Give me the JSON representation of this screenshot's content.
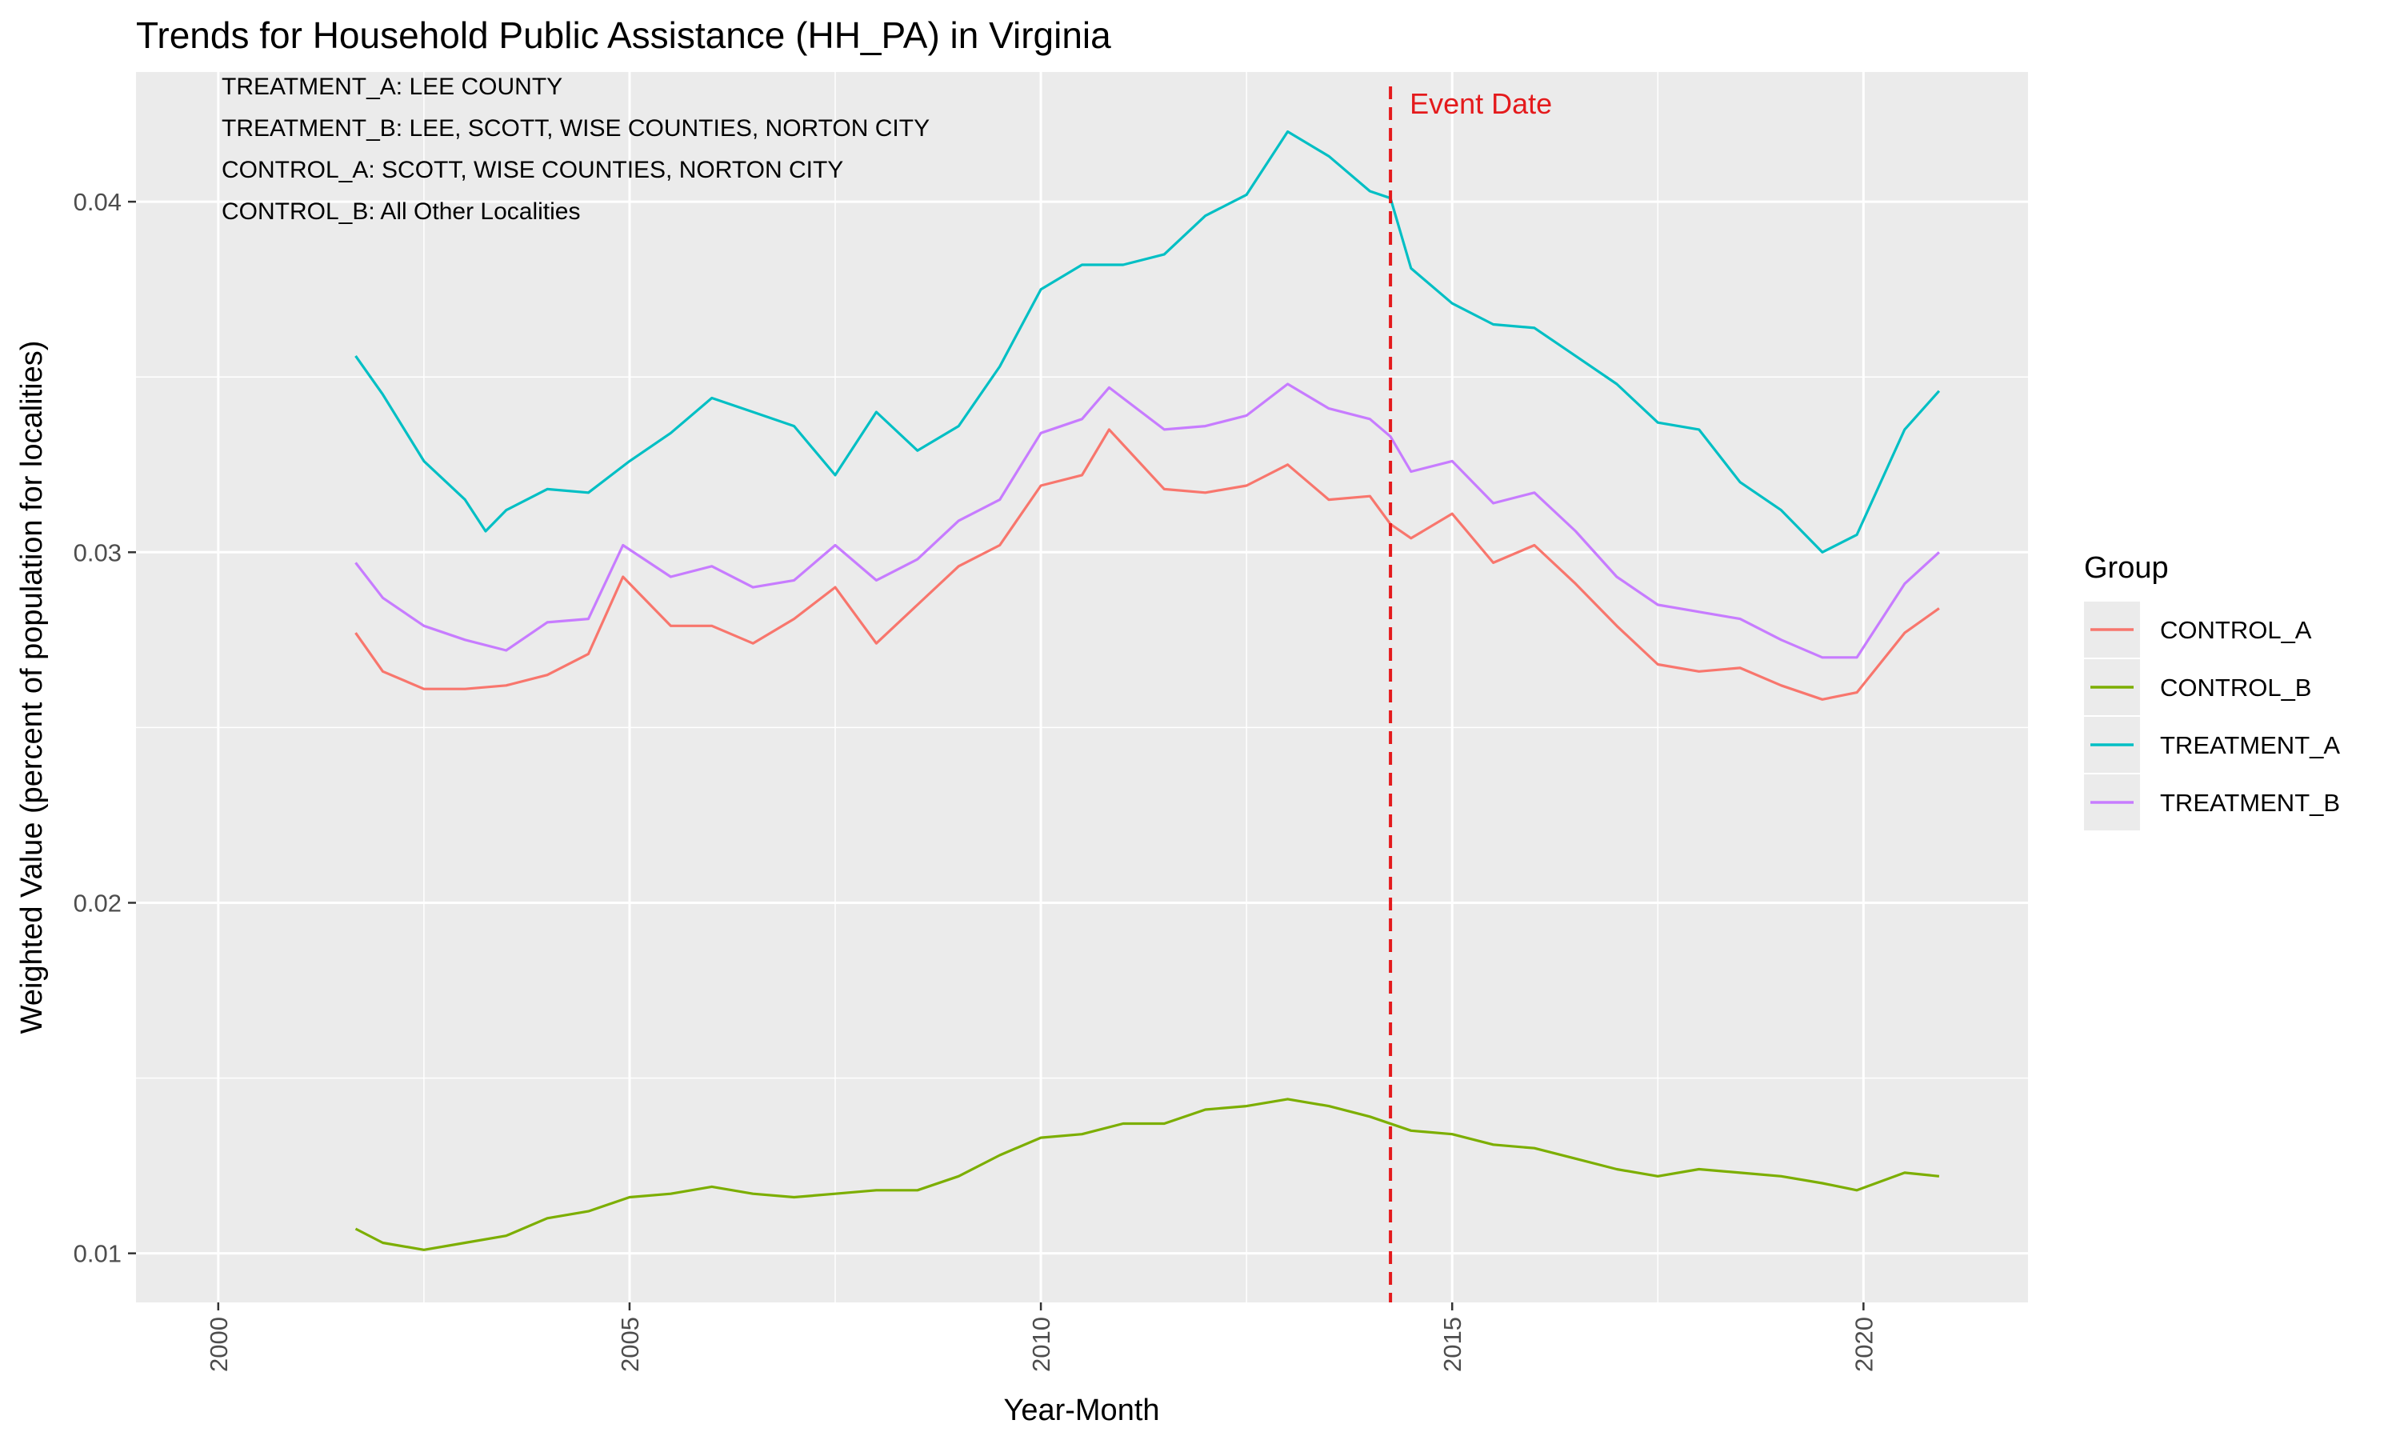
{
  "chart_data": {
    "type": "line",
    "title": "Trends for Household Public Assistance (HH_PA) in Virginia",
    "xlabel": "Year-Month",
    "ylabel": "Weighted Value (percent of population for localities)",
    "xlim": [
      1999.0,
      2022.0
    ],
    "ylim": [
      0.0086,
      0.0437
    ],
    "x_ticks": [
      2000,
      2005,
      2010,
      2015,
      2020
    ],
    "y_ticks": [
      0.01,
      0.02,
      0.03,
      0.04
    ],
    "x_tick_labels": [
      "2000",
      "2005",
      "2010",
      "2015",
      "2020"
    ],
    "y_tick_labels": [
      "0.01",
      "0.02",
      "0.03",
      "0.04"
    ],
    "grid": true,
    "legend": {
      "title": "Group",
      "position": "right"
    },
    "annotations": [
      "TREATMENT_A: LEE COUNTY",
      "TREATMENT_B: LEE, SCOTT, WISE COUNTIES, NORTON CITY",
      "CONTROL_A: SCOTT, WISE COUNTIES, NORTON CITY",
      "CONTROL_B: All Other Localities"
    ],
    "event_line": {
      "x": 2014.25,
      "label": "Event Date",
      "color": "#e41a1c"
    },
    "series": [
      {
        "name": "CONTROL_A",
        "color": "#F8766D",
        "points": [
          [
            2001.67,
            0.0277
          ],
          [
            2002.0,
            0.0266
          ],
          [
            2002.5,
            0.0261
          ],
          [
            2003.0,
            0.0261
          ],
          [
            2003.5,
            0.0262
          ],
          [
            2004.0,
            0.0265
          ],
          [
            2004.5,
            0.0271
          ],
          [
            2004.92,
            0.0293
          ],
          [
            2005.5,
            0.0279
          ],
          [
            2006.0,
            0.0279
          ],
          [
            2006.5,
            0.0274
          ],
          [
            2007.0,
            0.0281
          ],
          [
            2007.5,
            0.029
          ],
          [
            2008.0,
            0.0274
          ],
          [
            2008.5,
            0.0285
          ],
          [
            2009.0,
            0.0296
          ],
          [
            2009.5,
            0.0302
          ],
          [
            2010.0,
            0.0319
          ],
          [
            2010.5,
            0.0322
          ],
          [
            2010.83,
            0.0335
          ],
          [
            2011.5,
            0.0318
          ],
          [
            2012.0,
            0.0317
          ],
          [
            2012.5,
            0.0319
          ],
          [
            2013.0,
            0.0325
          ],
          [
            2013.5,
            0.0315
          ],
          [
            2014.0,
            0.0316
          ],
          [
            2014.25,
            0.0308
          ],
          [
            2014.5,
            0.0304
          ],
          [
            2015.0,
            0.0311
          ],
          [
            2015.5,
            0.0297
          ],
          [
            2016.0,
            0.0302
          ],
          [
            2016.5,
            0.0291
          ],
          [
            2017.0,
            0.0279
          ],
          [
            2017.5,
            0.0268
          ],
          [
            2018.0,
            0.0266
          ],
          [
            2018.5,
            0.0267
          ],
          [
            2019.0,
            0.0262
          ],
          [
            2019.5,
            0.0258
          ],
          [
            2019.92,
            0.026
          ],
          [
            2020.5,
            0.0277
          ],
          [
            2020.92,
            0.0284
          ]
        ]
      },
      {
        "name": "CONTROL_B",
        "color": "#7CAE00",
        "points": [
          [
            2001.67,
            0.0107
          ],
          [
            2002.0,
            0.0103
          ],
          [
            2002.5,
            0.0101
          ],
          [
            2003.0,
            0.0103
          ],
          [
            2003.5,
            0.0105
          ],
          [
            2004.0,
            0.011
          ],
          [
            2004.5,
            0.0112
          ],
          [
            2005.0,
            0.0116
          ],
          [
            2005.5,
            0.0117
          ],
          [
            2006.0,
            0.0119
          ],
          [
            2006.5,
            0.0117
          ],
          [
            2007.0,
            0.0116
          ],
          [
            2007.5,
            0.0117
          ],
          [
            2008.0,
            0.0118
          ],
          [
            2008.5,
            0.0118
          ],
          [
            2009.0,
            0.0122
          ],
          [
            2009.5,
            0.0128
          ],
          [
            2010.0,
            0.0133
          ],
          [
            2010.5,
            0.0134
          ],
          [
            2011.0,
            0.0137
          ],
          [
            2011.5,
            0.0137
          ],
          [
            2012.0,
            0.0141
          ],
          [
            2012.5,
            0.0142
          ],
          [
            2013.0,
            0.0144
          ],
          [
            2013.5,
            0.0142
          ],
          [
            2014.0,
            0.0139
          ],
          [
            2014.5,
            0.0135
          ],
          [
            2015.0,
            0.0134
          ],
          [
            2015.5,
            0.0131
          ],
          [
            2016.0,
            0.013
          ],
          [
            2016.5,
            0.0127
          ],
          [
            2017.0,
            0.0124
          ],
          [
            2017.5,
            0.0122
          ],
          [
            2018.0,
            0.0124
          ],
          [
            2018.5,
            0.0123
          ],
          [
            2019.0,
            0.0122
          ],
          [
            2019.5,
            0.012
          ],
          [
            2019.92,
            0.0118
          ],
          [
            2020.5,
            0.0123
          ],
          [
            2020.92,
            0.0122
          ]
        ]
      },
      {
        "name": "TREATMENT_A",
        "color": "#00BFC4",
        "points": [
          [
            2001.67,
            0.0356
          ],
          [
            2002.0,
            0.0345
          ],
          [
            2002.5,
            0.0326
          ],
          [
            2003.0,
            0.0315
          ],
          [
            2003.25,
            0.0306
          ],
          [
            2003.5,
            0.0312
          ],
          [
            2004.0,
            0.0318
          ],
          [
            2004.5,
            0.0317
          ],
          [
            2005.0,
            0.0326
          ],
          [
            2005.5,
            0.0334
          ],
          [
            2006.0,
            0.0344
          ],
          [
            2006.5,
            0.034
          ],
          [
            2007.0,
            0.0336
          ],
          [
            2007.5,
            0.0322
          ],
          [
            2008.0,
            0.034
          ],
          [
            2008.5,
            0.0329
          ],
          [
            2009.0,
            0.0336
          ],
          [
            2009.5,
            0.0353
          ],
          [
            2010.0,
            0.0375
          ],
          [
            2010.5,
            0.0382
          ],
          [
            2011.0,
            0.0382
          ],
          [
            2011.5,
            0.0385
          ],
          [
            2012.0,
            0.0396
          ],
          [
            2012.5,
            0.0402
          ],
          [
            2013.0,
            0.042
          ],
          [
            2013.5,
            0.0413
          ],
          [
            2014.0,
            0.0403
          ],
          [
            2014.25,
            0.0401
          ],
          [
            2014.5,
            0.0381
          ],
          [
            2015.0,
            0.0371
          ],
          [
            2015.5,
            0.0365
          ],
          [
            2016.0,
            0.0364
          ],
          [
            2016.5,
            0.0356
          ],
          [
            2017.0,
            0.0348
          ],
          [
            2017.5,
            0.0337
          ],
          [
            2018.0,
            0.0335
          ],
          [
            2018.5,
            0.032
          ],
          [
            2019.0,
            0.0312
          ],
          [
            2019.5,
            0.03
          ],
          [
            2019.92,
            0.0305
          ],
          [
            2020.5,
            0.0335
          ],
          [
            2020.92,
            0.0346
          ]
        ]
      },
      {
        "name": "TREATMENT_B",
        "color": "#C77CFF",
        "points": [
          [
            2001.67,
            0.0297
          ],
          [
            2002.0,
            0.0287
          ],
          [
            2002.5,
            0.0279
          ],
          [
            2003.0,
            0.0275
          ],
          [
            2003.5,
            0.0272
          ],
          [
            2004.0,
            0.028
          ],
          [
            2004.5,
            0.0281
          ],
          [
            2004.92,
            0.0302
          ],
          [
            2005.5,
            0.0293
          ],
          [
            2006.0,
            0.0296
          ],
          [
            2006.5,
            0.029
          ],
          [
            2007.0,
            0.0292
          ],
          [
            2007.5,
            0.0302
          ],
          [
            2008.0,
            0.0292
          ],
          [
            2008.5,
            0.0298
          ],
          [
            2009.0,
            0.0309
          ],
          [
            2009.5,
            0.0315
          ],
          [
            2010.0,
            0.0334
          ],
          [
            2010.5,
            0.0338
          ],
          [
            2010.83,
            0.0347
          ],
          [
            2011.5,
            0.0335
          ],
          [
            2012.0,
            0.0336
          ],
          [
            2012.5,
            0.0339
          ],
          [
            2013.0,
            0.0348
          ],
          [
            2013.5,
            0.0341
          ],
          [
            2014.0,
            0.0338
          ],
          [
            2014.25,
            0.0333
          ],
          [
            2014.5,
            0.0323
          ],
          [
            2015.0,
            0.0326
          ],
          [
            2015.5,
            0.0314
          ],
          [
            2016.0,
            0.0317
          ],
          [
            2016.5,
            0.0306
          ],
          [
            2017.0,
            0.0293
          ],
          [
            2017.5,
            0.0285
          ],
          [
            2018.0,
            0.0283
          ],
          [
            2018.5,
            0.0281
          ],
          [
            2019.0,
            0.0275
          ],
          [
            2019.5,
            0.027
          ],
          [
            2019.92,
            0.027
          ],
          [
            2020.5,
            0.0291
          ],
          [
            2020.92,
            0.03
          ]
        ]
      }
    ]
  }
}
